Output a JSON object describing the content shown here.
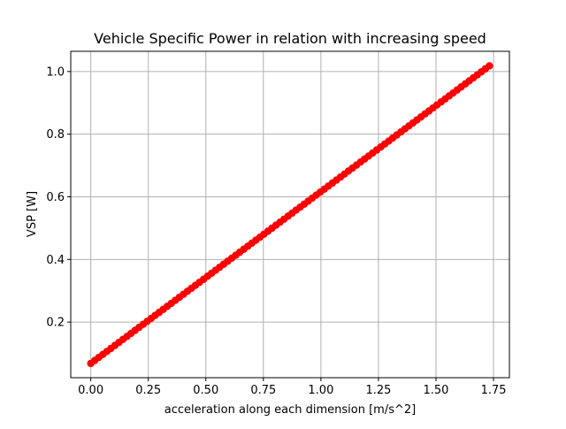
{
  "chart_data": {
    "type": "scatter",
    "title": "Vehicle Specific Power in relation with increasing speed",
    "xlabel": "acceleration along each dimension [m/s^2]",
    "ylabel": "VSP [W]",
    "xlim": [
      -0.087,
      1.819
    ],
    "ylim": [
      0.0225,
      1.0645
    ],
    "xticks": [
      0.0,
      0.25,
      0.5,
      0.75,
      1.0,
      1.25,
      1.5,
      1.75
    ],
    "xtick_labels": [
      "0.00",
      "0.25",
      "0.50",
      "0.75",
      "1.00",
      "1.25",
      "1.50",
      "1.75"
    ],
    "yticks": [
      0.2,
      0.4,
      0.6,
      0.8,
      1.0
    ],
    "ytick_labels": [
      "0.2",
      "0.4",
      "0.6",
      "0.8",
      "1.0"
    ],
    "grid": true,
    "series": [
      {
        "color": "#ff0000",
        "marker": "circle-with-line",
        "x_start": 0.0,
        "x_end": 1.732,
        "n_points": 100,
        "y_start": 0.068,
        "y_end": 1.018
      }
    ]
  }
}
